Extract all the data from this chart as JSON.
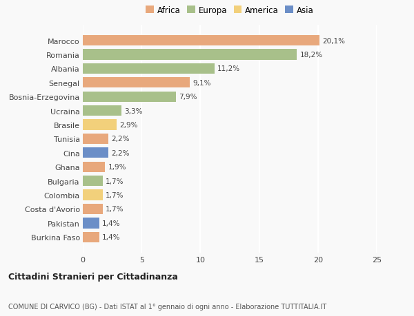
{
  "countries": [
    "Marocco",
    "Romania",
    "Albania",
    "Senegal",
    "Bosnia-Erzegovina",
    "Ucraina",
    "Brasile",
    "Tunisia",
    "Cina",
    "Ghana",
    "Bulgaria",
    "Colombia",
    "Costa d'Avorio",
    "Pakistan",
    "Burkina Faso"
  ],
  "values": [
    20.1,
    18.2,
    11.2,
    9.1,
    7.9,
    3.3,
    2.9,
    2.2,
    2.2,
    1.9,
    1.7,
    1.7,
    1.7,
    1.4,
    1.4
  ],
  "continents": [
    "Africa",
    "Europa",
    "Europa",
    "Africa",
    "Europa",
    "Europa",
    "America",
    "Africa",
    "Asia",
    "Africa",
    "Europa",
    "America",
    "Africa",
    "Asia",
    "Africa"
  ],
  "colors": {
    "Africa": "#E8A87C",
    "Europa": "#A8C08A",
    "America": "#F2D07B",
    "Asia": "#6B8EC7"
  },
  "legend_order": [
    "Africa",
    "Europa",
    "America",
    "Asia"
  ],
  "xlim": [
    0,
    25
  ],
  "xticks": [
    0,
    5,
    10,
    15,
    20,
    25
  ],
  "title": "Cittadini Stranieri per Cittadinanza",
  "subtitle": "COMUNE DI CARVICO (BG) - Dati ISTAT al 1° gennaio di ogni anno - Elaborazione TUTTITALIA.IT",
  "bg_color": "#f9f9f9",
  "bar_height": 0.75
}
